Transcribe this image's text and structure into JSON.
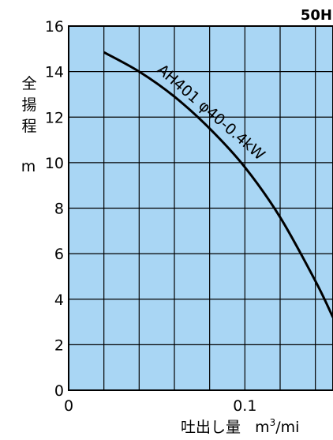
{
  "chart_data": {
    "type": "line",
    "corner_label": "50H",
    "ylabel_chars": [
      "全",
      "揚",
      "程"
    ],
    "ylabel_unit": "m",
    "xlabel": "吐出し量",
    "xlabel_unit_base": "m",
    "xlabel_unit_sup": "3",
    "xlabel_unit_tail": "/mi",
    "xlim": [
      0,
      0.15
    ],
    "ylim": [
      0,
      16
    ],
    "x_ticks": [
      {
        "value": 0,
        "label": "0"
      },
      {
        "value": 0.1,
        "label": "0.1"
      }
    ],
    "y_ticks": [
      {
        "value": 0,
        "label": "0"
      },
      {
        "value": 2,
        "label": "2"
      },
      {
        "value": 4,
        "label": "4"
      },
      {
        "value": 6,
        "label": "6"
      },
      {
        "value": 8,
        "label": "8"
      },
      {
        "value": 10,
        "label": "10"
      },
      {
        "value": 12,
        "label": "12"
      },
      {
        "value": 14,
        "label": "14"
      },
      {
        "value": 16,
        "label": "16"
      }
    ],
    "grid": true,
    "series": [
      {
        "name": "AH401 φ40-0.4kW",
        "x": [
          0.02,
          0.04,
          0.06,
          0.08,
          0.1,
          0.12,
          0.14,
          0.15
        ],
        "y": [
          14.85,
          14.0,
          12.9,
          11.5,
          9.8,
          7.6,
          4.8,
          3.2
        ]
      }
    ],
    "colors": {
      "plot_background": "#a9d6f4",
      "grid": "#000000",
      "curve": "#000000"
    }
  }
}
